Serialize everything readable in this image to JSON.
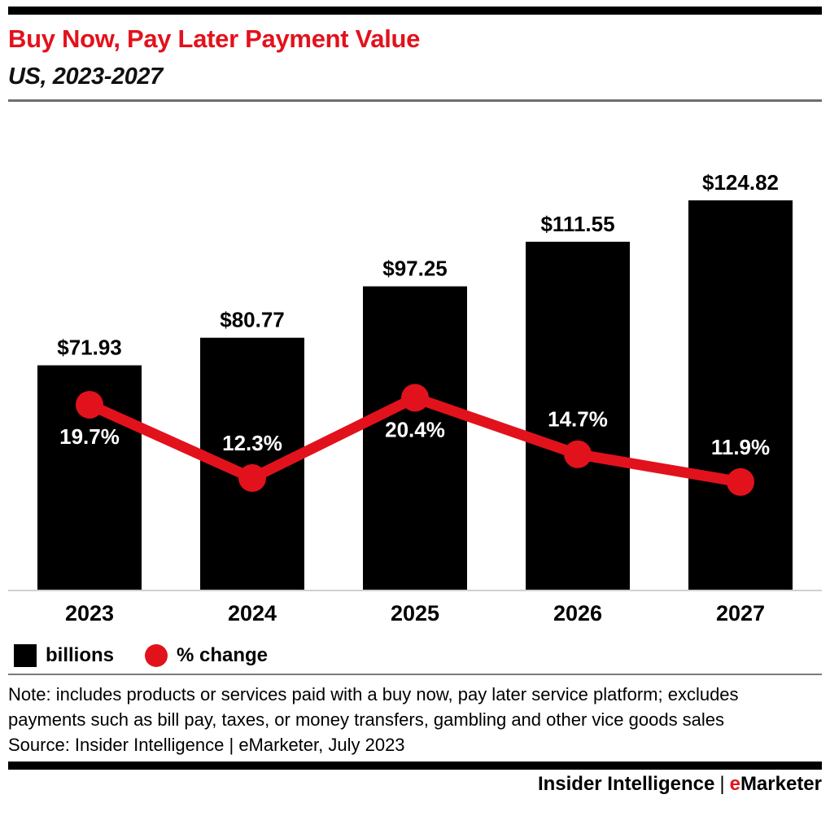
{
  "chart_data": {
    "type": "bar",
    "combo": true,
    "title": "Buy Now, Pay Later Payment Value",
    "subtitle": "US, 2023-2027",
    "xlabel": "",
    "ylabel": "",
    "grid": false,
    "legend_position": "bottom",
    "categories": [
      "2023",
      "2024",
      "2025",
      "2026",
      "2027"
    ],
    "series": [
      {
        "name": "billions",
        "type": "bar",
        "color": "#000000",
        "value_prefix": "$",
        "values": [
          71.93,
          80.77,
          97.25,
          111.55,
          124.82
        ],
        "labels": [
          "$71.93",
          "$80.77",
          "$97.25",
          "$111.55",
          "$124.82"
        ],
        "ylim": [
          0,
          124.82
        ]
      },
      {
        "name": "% change",
        "type": "line",
        "color": "#e2121c",
        "values": [
          19.7,
          12.3,
          20.4,
          14.7,
          11.9
        ],
        "labels": [
          "19.7%",
          "12.3%",
          "20.4%",
          "14.7%",
          "11.9%"
        ],
        "label_side": [
          "below",
          "above",
          "below",
          "above",
          "above"
        ],
        "ylim": [
          0,
          25
        ]
      }
    ]
  },
  "legend": {
    "items": [
      {
        "label": "billions",
        "swatch": "square",
        "color": "#000000"
      },
      {
        "label": "% change",
        "swatch": "circle",
        "color": "#e2121c"
      }
    ]
  },
  "note": {
    "text": "Note: includes products or services paid with a buy now, pay later service platform; excludes payments such as bill pay, taxes, or money transfers, gambling and other vice goods sales",
    "source": "Source: Insider Intelligence | eMarketer, July 2023"
  },
  "footer": {
    "brand": "Insider Intelligence",
    "separator": "|",
    "emarketer_e": "e",
    "emarketer_rest": "Marketer"
  },
  "colors": {
    "accent_red": "#e2121c",
    "bar_black": "#000000",
    "axis_line": "#cfcfcf",
    "header_divider": "#6e6e6e",
    "footnote_divider": "#7a7a7a"
  }
}
